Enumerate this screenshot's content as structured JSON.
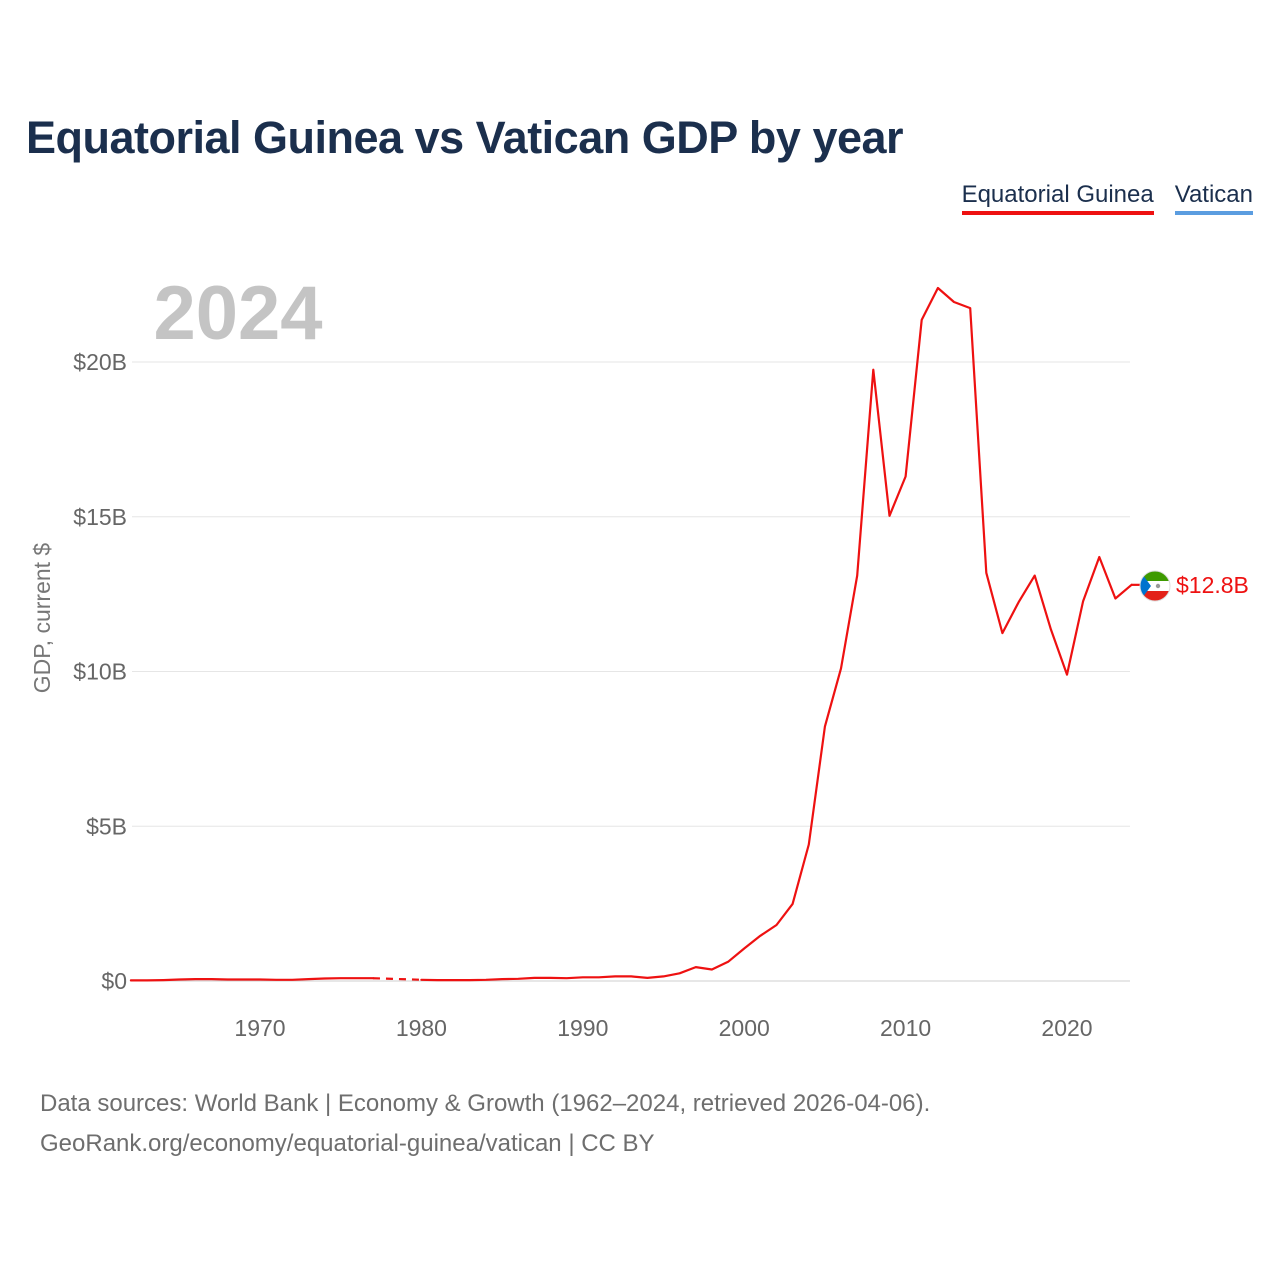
{
  "title": "Equatorial Guinea vs Vatican GDP by year",
  "legend": [
    {
      "label": "Equatorial Guinea",
      "color": "#ee1111"
    },
    {
      "label": "Vatican",
      "color": "#5b9de0"
    }
  ],
  "year_watermark": "2024",
  "end_label": "$12.8B",
  "footer": {
    "sources": "Data sources: World Bank | Economy & Growth (1962–2024, retrieved 2026-04-06).",
    "credit": "GeoRank.org/economy/equatorial-guinea/vatican | CC BY"
  },
  "chart_data": {
    "type": "line",
    "title": "Equatorial Guinea vs Vatican GDP by year",
    "xlabel": "",
    "ylabel": "GDP, current $",
    "xlim": [
      1962,
      2024
    ],
    "ylim": [
      0,
      22.5
    ],
    "y_unit": "billion current US$",
    "yticks": [
      {
        "value": 0,
        "label": "$0"
      },
      {
        "value": 5,
        "label": "$5B"
      },
      {
        "value": 10,
        "label": "$10B"
      },
      {
        "value": 15,
        "label": "$15B"
      },
      {
        "value": 20,
        "label": "$20B"
      }
    ],
    "xticks": [
      {
        "value": 1970,
        "label": "1970"
      },
      {
        "value": 1980,
        "label": "1980"
      },
      {
        "value": 1990,
        "label": "1990"
      },
      {
        "value": 2000,
        "label": "2000"
      },
      {
        "value": 2010,
        "label": "2010"
      },
      {
        "value": 2020,
        "label": "2020"
      }
    ],
    "grid": true,
    "legend_position": "top-right",
    "series": [
      {
        "name": "Equatorial Guinea",
        "color": "#ee1111",
        "missing_range": [
          1977,
          1980
        ],
        "points": [
          [
            1962,
            0.02
          ],
          [
            1963,
            0.02
          ],
          [
            1964,
            0.03
          ],
          [
            1965,
            0.05
          ],
          [
            1966,
            0.06
          ],
          [
            1967,
            0.06
          ],
          [
            1968,
            0.05
          ],
          [
            1969,
            0.05
          ],
          [
            1970,
            0.05
          ],
          [
            1971,
            0.04
          ],
          [
            1972,
            0.04
          ],
          [
            1973,
            0.06
          ],
          [
            1974,
            0.08
          ],
          [
            1975,
            0.09
          ],
          [
            1976,
            0.09
          ],
          [
            1977,
            0.09
          ],
          [
            1980,
            0.04
          ],
          [
            1981,
            0.03
          ],
          [
            1982,
            0.03
          ],
          [
            1983,
            0.03
          ],
          [
            1984,
            0.04
          ],
          [
            1985,
            0.06
          ],
          [
            1986,
            0.07
          ],
          [
            1987,
            0.1
          ],
          [
            1988,
            0.1
          ],
          [
            1989,
            0.09
          ],
          [
            1990,
            0.12
          ],
          [
            1991,
            0.12
          ],
          [
            1992,
            0.15
          ],
          [
            1993,
            0.15
          ],
          [
            1994,
            0.1
          ],
          [
            1995,
            0.15
          ],
          [
            1996,
            0.25
          ],
          [
            1997,
            0.45
          ],
          [
            1998,
            0.37
          ],
          [
            1999,
            0.62
          ],
          [
            2000,
            1.05
          ],
          [
            2001,
            1.46
          ],
          [
            2002,
            1.81
          ],
          [
            2003,
            2.49
          ],
          [
            2004,
            4.41
          ],
          [
            2005,
            8.22
          ],
          [
            2006,
            10.1
          ],
          [
            2007,
            13.1
          ],
          [
            2008,
            19.75
          ],
          [
            2009,
            15.03
          ],
          [
            2010,
            16.3
          ],
          [
            2011,
            21.36
          ],
          [
            2012,
            22.39
          ],
          [
            2013,
            21.94
          ],
          [
            2014,
            21.74
          ],
          [
            2015,
            13.19
          ],
          [
            2016,
            11.24
          ],
          [
            2017,
            12.24
          ],
          [
            2018,
            13.1
          ],
          [
            2019,
            11.36
          ],
          [
            2020,
            9.9
          ],
          [
            2021,
            12.27
          ],
          [
            2022,
            13.7
          ],
          [
            2023,
            12.36
          ],
          [
            2024,
            12.8
          ]
        ]
      },
      {
        "name": "Vatican",
        "color": "#5b9de0",
        "points": []
      }
    ]
  }
}
